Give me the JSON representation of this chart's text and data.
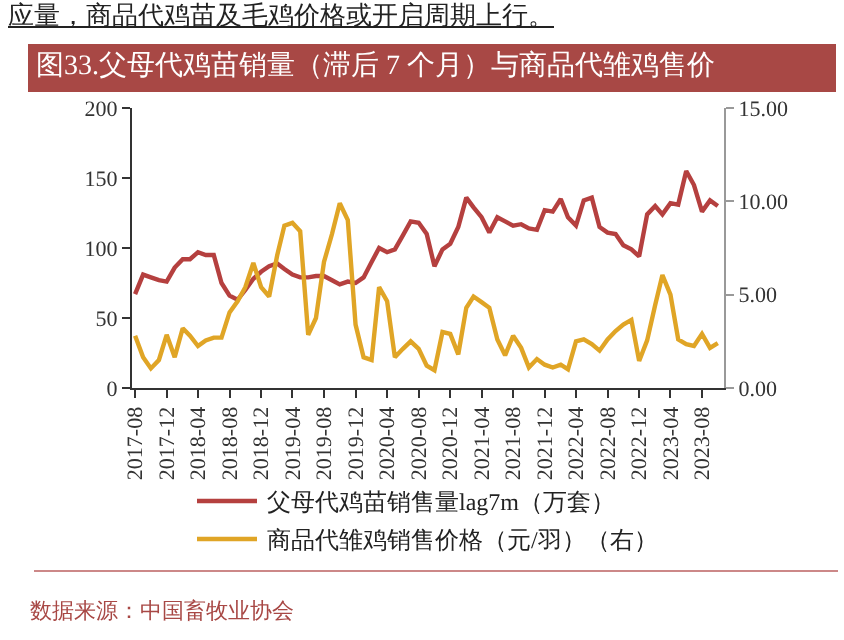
{
  "chart_data": {
    "type": "line",
    "title": "图33.父母代鸡苗销量（滞后 7 个月）与商品代雏鸡售价",
    "annotations": [
      "应量，商品代鸡苗及毛鸡价格或开启周期上行。",
      "数据来源：中国畜牧业协会"
    ],
    "x": [
      "2017-08",
      "2017-09",
      "2017-10",
      "2017-11",
      "2017-12",
      "2018-01",
      "2018-02",
      "2018-03",
      "2018-04",
      "2018-05",
      "2018-06",
      "2018-07",
      "2018-08",
      "2018-09",
      "2018-10",
      "2018-11",
      "2018-12",
      "2019-01",
      "2019-02",
      "2019-03",
      "2019-04",
      "2019-05",
      "2019-06",
      "2019-07",
      "2019-08",
      "2019-09",
      "2019-10",
      "2019-11",
      "2019-12",
      "2020-01",
      "2020-02",
      "2020-03",
      "2020-04",
      "2020-05",
      "2020-06",
      "2020-07",
      "2020-08",
      "2020-09",
      "2020-10",
      "2020-11",
      "2020-12",
      "2021-01",
      "2021-02",
      "2021-03",
      "2021-04",
      "2021-05",
      "2021-06",
      "2021-07",
      "2021-08",
      "2021-09",
      "2021-10",
      "2021-11",
      "2021-12",
      "2022-01",
      "2022-02",
      "2022-03",
      "2022-04",
      "2022-05",
      "2022-06",
      "2022-07",
      "2022-08",
      "2022-09",
      "2022-10",
      "2022-11",
      "2022-12",
      "2023-01",
      "2023-02",
      "2023-03",
      "2023-04",
      "2023-05",
      "2023-06",
      "2023-07",
      "2023-08",
      "2023-09",
      "2023-10"
    ],
    "series": [
      {
        "name": "父母代鸡苗销售量lag7m（万套）",
        "color": "#b5403f",
        "values": [
          67,
          81,
          79,
          77,
          76,
          86,
          92,
          92,
          97,
          95,
          95,
          75,
          66,
          63,
          70,
          78,
          83,
          87,
          89,
          85,
          81,
          79,
          79,
          80,
          80,
          77,
          74,
          76,
          75,
          79,
          90,
          100,
          97,
          99,
          109,
          119,
          118,
          110,
          87,
          99,
          103,
          115,
          136,
          129,
          122,
          111,
          122,
          119,
          116,
          117,
          114,
          113,
          127,
          126,
          135,
          122,
          116,
          134,
          136,
          115,
          111,
          110,
          102,
          99,
          94,
          124,
          130,
          124,
          132,
          131,
          155,
          145,
          126,
          134,
          130
        ]
      },
      {
        "name": "商品代雏鸡销售价格（元/羽）（右）",
        "color": "#e0a526",
        "axis": "y2",
        "values": [
          2.8,
          1.65,
          1.05,
          1.5,
          2.85,
          1.65,
          3.2,
          2.8,
          2.25,
          2.55,
          2.7,
          2.7,
          4.05,
          4.65,
          5.4,
          6.7,
          5.4,
          4.9,
          7.1,
          8.7,
          8.85,
          8.4,
          2.85,
          3.75,
          6.75,
          8.25,
          9.9,
          9.0,
          3.4,
          1.65,
          1.5,
          5.4,
          4.65,
          1.65,
          2.1,
          2.5,
          2.1,
          1.2,
          0.95,
          3.0,
          2.9,
          1.8,
          4.3,
          4.9,
          4.6,
          4.3,
          2.6,
          1.75,
          2.8,
          2.15,
          1.1,
          1.55,
          1.25,
          1.1,
          1.25,
          1.0,
          2.5,
          2.6,
          2.35,
          2.0,
          2.6,
          3.05,
          3.4,
          3.65,
          1.45,
          2.55,
          4.45,
          6.05,
          5.0,
          2.6,
          2.35,
          2.25,
          2.9,
          2.15,
          2.4
        ]
      }
    ],
    "xlim": [
      "2017-07-20",
      "2023-10-25"
    ],
    "xticks": [
      "2017-08",
      "2017-12",
      "2018-04",
      "2018-08",
      "2018-12",
      "2019-04",
      "2019-08",
      "2019-12",
      "2020-04",
      "2020-08",
      "2020-12",
      "2021-04",
      "2021-08",
      "2021-12",
      "2022-04",
      "2022-08",
      "2022-12",
      "2023-04",
      "2023-08"
    ],
    "ylim": [
      0,
      200
    ],
    "yticks": [
      0,
      50,
      100,
      150,
      200
    ],
    "y2lim": [
      0,
      15
    ],
    "y2ticks": [
      {
        "value": 0,
        "label": "0.00"
      },
      {
        "value": 5,
        "label": "5.00"
      },
      {
        "value": 10,
        "label": "10.00"
      },
      {
        "value": 15,
        "label": "15.00"
      }
    ],
    "grid": false,
    "legend": "bottom",
    "marker": "none",
    "line_style": "solid"
  }
}
